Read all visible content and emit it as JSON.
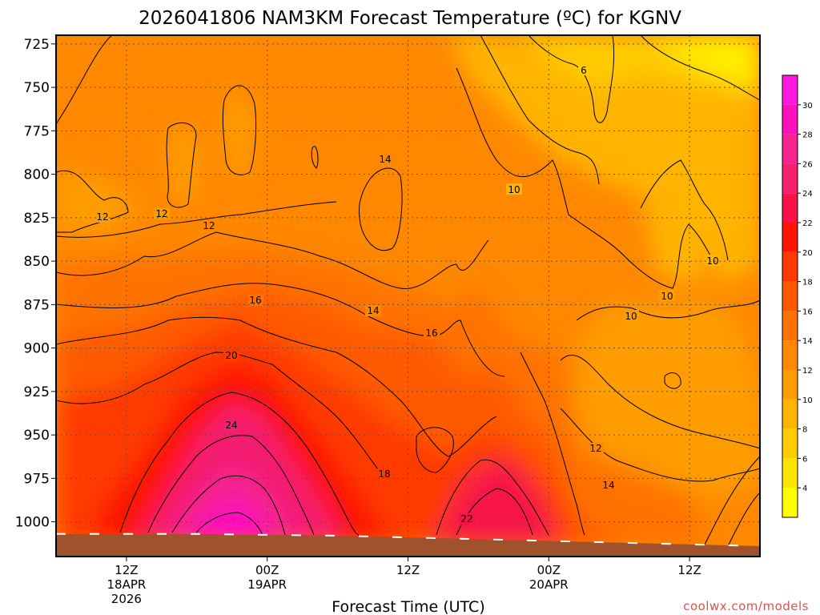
{
  "chart_data": {
    "type": "heatmap",
    "title": "2026041806 NAM3KM Forecast Temperature (ºC) for KGNV",
    "xlabel": "Forecast Time (UTC)",
    "ylabel": "",
    "y_axis": {
      "reversed": true,
      "ylim": [
        1020,
        720
      ],
      "ticks": [
        725,
        750,
        775,
        800,
        825,
        850,
        875,
        900,
        925,
        950,
        975,
        1000
      ],
      "tick_labels": [
        "725",
        "750",
        "775",
        "800",
        "825",
        "850",
        "875",
        "900",
        "925",
        "950",
        "975",
        "1000"
      ]
    },
    "x_axis": {
      "xlim": [
        0,
        60
      ],
      "ticks": [
        6,
        18,
        30,
        42,
        54
      ],
      "tick_labels": [
        {
          "lines": [
            "12Z",
            "18APR",
            "2026"
          ]
        },
        {
          "lines": [
            "00Z",
            "19APR"
          ]
        },
        {
          "lines": [
            "12Z"
          ]
        },
        {
          "lines": [
            "00Z",
            "20APR"
          ]
        },
        {
          "lines": [
            "12Z"
          ]
        }
      ]
    },
    "grid": true,
    "colorbar": {
      "levels": [
        2,
        4,
        6,
        8,
        10,
        12,
        14,
        16,
        18,
        20,
        22,
        24,
        26,
        28,
        30,
        32
      ],
      "colors": [
        "#ffff00",
        "#ffe400",
        "#ffcc00",
        "#ffb400",
        "#ff9d00",
        "#ff8800",
        "#ff7200",
        "#ff5a00",
        "#ff3a00",
        "#ff1400",
        "#f8124a",
        "#f41f6e",
        "#f42490",
        "#ff10bd",
        "#ff18de"
      ],
      "labels": [
        "4",
        "6",
        "8",
        "10",
        "12",
        "14",
        "16",
        "18",
        "20",
        "22",
        "24",
        "26",
        "28",
        "30"
      ]
    },
    "contour_labels": [
      "6",
      "10",
      "10",
      "10",
      "10",
      "12",
      "12",
      "12",
      "12",
      "14",
      "14",
      "14",
      "16",
      "16",
      "18",
      "20",
      "22",
      "24"
    ],
    "surface_pressure_hPa": [
      1007,
      1007,
      1008,
      1010,
      1012,
      1014
    ]
  },
  "credit": "coolwx.com/models"
}
